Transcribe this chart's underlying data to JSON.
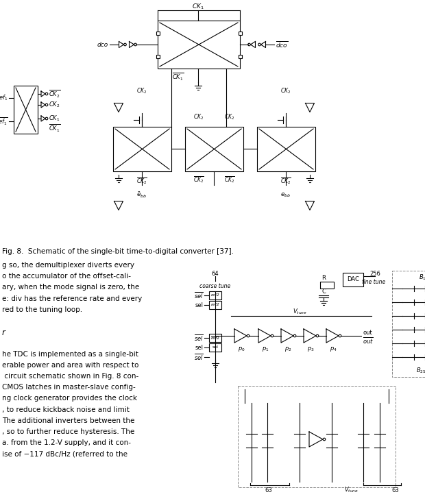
{
  "figure_width": 6.2,
  "figure_height": 7.31,
  "dpi": 100,
  "background_color": "#ffffff",
  "caption_text": "Fig. 8.  Schematic of the single-bit time-to-digital converter [37].",
  "caption_fontsize": 7.5,
  "body_text_lines": [
    "g so, the demultiplexer diverts every",
    "o the accumulator of the offset-cali-",
    "ary, when the mode signal is zero, the",
    "e: div has the reference rate and every",
    "red to the tuning loop.",
    "",
    "r",
    "",
    "he TDC is implemented as a single-bit",
    "erable power and area with respect to",
    " circuit schematic shown in Fig. 8 con-",
    "CMOS latches in master-slave config-",
    "ng clock generator provides the clock",
    ", to reduce kickback noise and limit",
    "The additional inverters between the",
    ", so to further reduce hysteresis. The",
    "a. from the 1.2-V supply, and it con-",
    "ise of −117 dBc/Hz (referred to the"
  ],
  "body_text_fontsize": 7.5
}
